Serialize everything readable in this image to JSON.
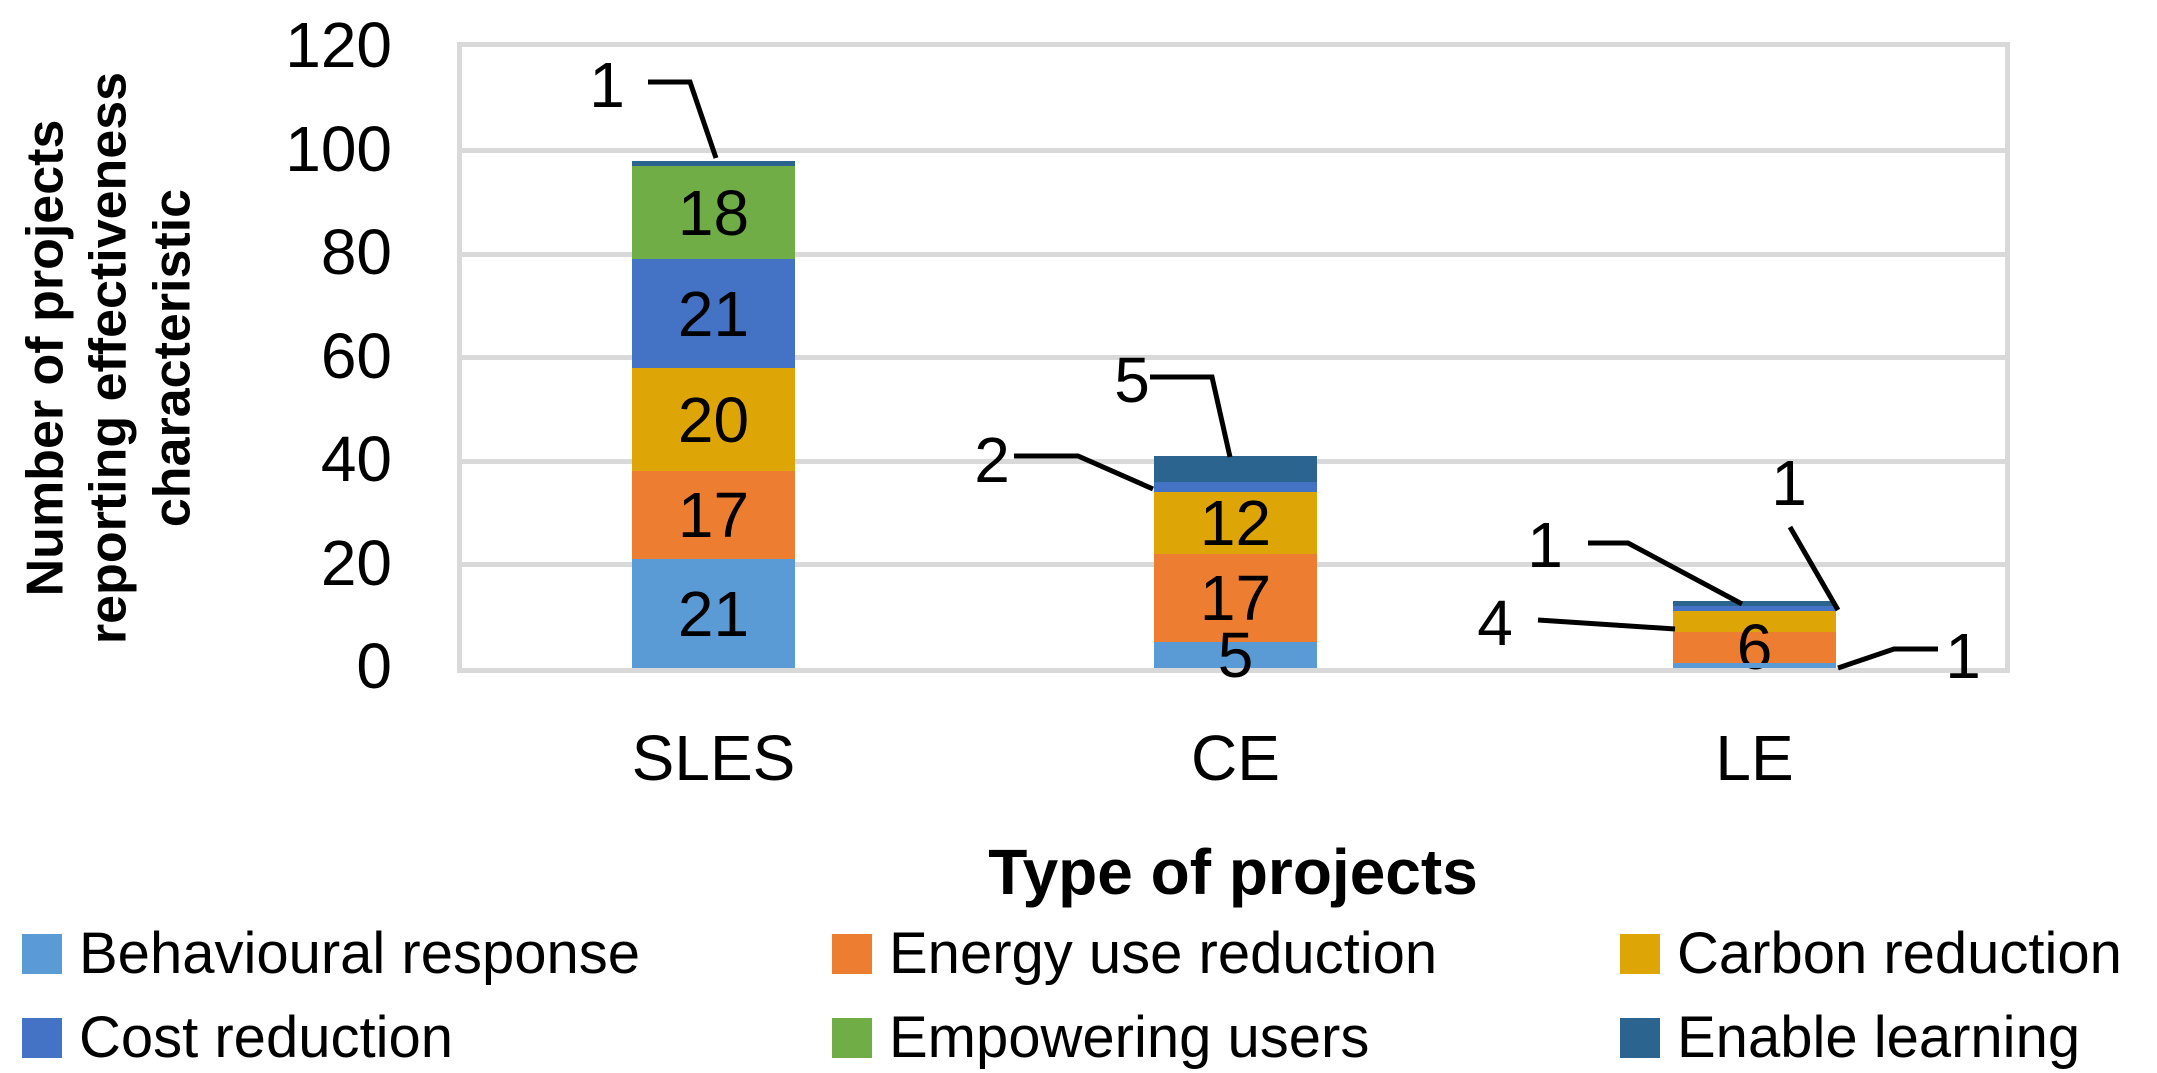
{
  "chart_data": {
    "type": "bar",
    "stacked": true,
    "title": "",
    "xlabel": "Type of projects",
    "ylabel": "Number of projects reporting effectiveness characteristic",
    "ylabel_lines": [
      "Number of projects",
      "reporting effectiveness",
      "characteristic"
    ],
    "categories": [
      "SLES",
      "CE",
      "LE"
    ],
    "ylim": [
      0,
      120
    ],
    "yticks": [
      0,
      20,
      40,
      60,
      80,
      100,
      120
    ],
    "grid": true,
    "legend_position": "bottom",
    "series": [
      {
        "name": "Behavioural response",
        "color": "#5B9BD5",
        "values": [
          21,
          5,
          1
        ],
        "inside_labels": [
          "21",
          "5",
          ""
        ]
      },
      {
        "name": "Energy use reduction",
        "color": "#ED7D31",
        "values": [
          17,
          17,
          6
        ],
        "inside_labels": [
          "17",
          "17",
          "6"
        ]
      },
      {
        "name": "Carbon reduction",
        "color": "#DEA506",
        "values": [
          20,
          12,
          4
        ],
        "inside_labels": [
          "20",
          "12",
          ""
        ]
      },
      {
        "name": "Cost reduction",
        "color": "#4472C4",
        "values": [
          21,
          2,
          1
        ],
        "inside_labels": [
          "21",
          "",
          ""
        ]
      },
      {
        "name": "Empowering users",
        "color": "#70AD47",
        "values": [
          18,
          0,
          0
        ],
        "inside_labels": [
          "18",
          "",
          ""
        ]
      },
      {
        "name": "Enable learning",
        "color": "#2B648E",
        "values": [
          1,
          5,
          1
        ],
        "inside_labels": [
          "",
          "",
          ""
        ]
      }
    ],
    "callouts": [
      {
        "label": "1",
        "series": "Enable learning",
        "category": "SLES"
      },
      {
        "label": "5",
        "series": "Enable learning",
        "category": "CE"
      },
      {
        "label": "2",
        "series": "Cost reduction",
        "category": "CE"
      },
      {
        "label": "1",
        "series": "Enable learning",
        "category": "LE"
      },
      {
        "label": "4",
        "series": "Carbon reduction",
        "category": "LE"
      },
      {
        "label": "1",
        "series": "Cost reduction",
        "category": "LE"
      },
      {
        "label": "1",
        "series": "Behavioural response",
        "category": "LE"
      }
    ]
  }
}
